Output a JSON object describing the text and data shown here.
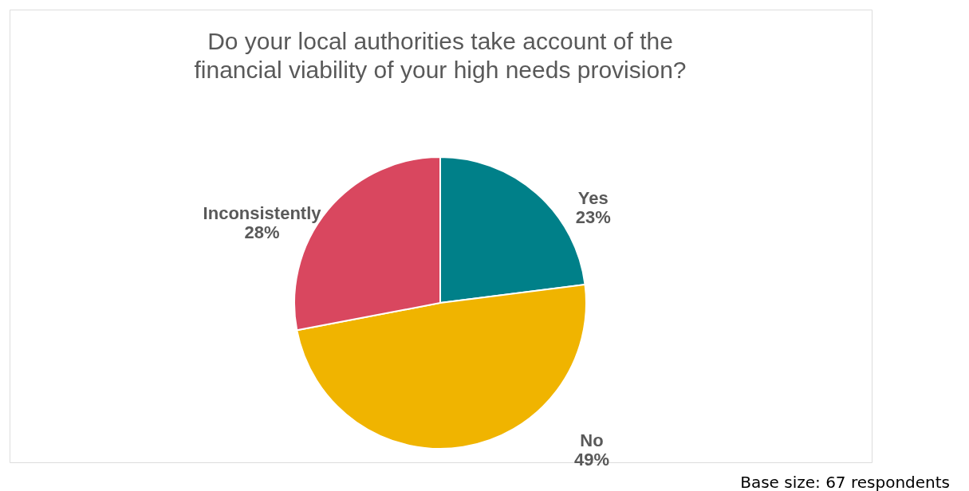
{
  "chart_data": {
    "type": "pie",
    "title": "Do your local authorities take account of the\nfinancial viability of your high needs provision?",
    "categories": [
      "Yes",
      "No",
      "Inconsistently"
    ],
    "values": [
      23,
      49,
      28
    ],
    "colors": [
      "#008089",
      "#f0b400",
      "#d9475f"
    ],
    "value_labels": [
      "23%",
      "49%",
      "28%"
    ],
    "annotations": [
      "Base size: 67 respondents"
    ]
  }
}
